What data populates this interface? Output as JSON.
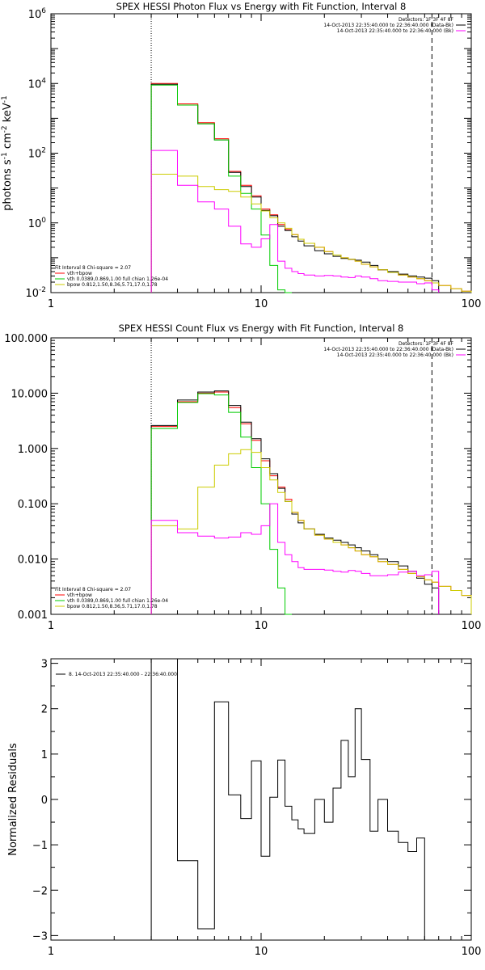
{
  "colors": {
    "data": "#000000",
    "total": "#ff0000",
    "vth": "#00cc00",
    "bpow": "#cccc00",
    "bk": "#ff00ff"
  },
  "chart_data": [
    {
      "type": "line",
      "title": "SPEX HESSI Photon Flux vs Energy with Fit Function, Interval 8",
      "ylabel_parts": {
        "a": "photons s",
        "ae": "-1",
        "b": " cm",
        "be": "-2",
        "c": " keV",
        "ce": "-1"
      },
      "xscale": "log",
      "yscale": "log",
      "xlim": [
        1,
        100
      ],
      "ylim": [
        0.01,
        1000000
      ],
      "xticks": [
        {
          "v": 1,
          "t": "1"
        },
        {
          "v": 10,
          "t": "10"
        },
        {
          "v": 100,
          "t": "100"
        }
      ],
      "yticks": [
        {
          "v": 0.01,
          "m": "10",
          "e": "-2"
        },
        {
          "v": 1,
          "m": "10",
          "e": "0"
        },
        {
          "v": 100,
          "m": "10",
          "e": "2"
        },
        {
          "v": 10000,
          "m": "10",
          "e": "4"
        },
        {
          "v": 1000000,
          "m": "10",
          "e": "6"
        }
      ],
      "vlines": [
        {
          "x": 3.0,
          "style": "dotted"
        },
        {
          "x": 65,
          "style": "dashed"
        }
      ],
      "legend_tr": [
        {
          "text": "Detectors: 1F 3F 4F 8F",
          "line": null
        },
        {
          "text": "14-Oct-2013 22:35:40.000 to 22:36:40.000 (Data-Bk)",
          "line": "data"
        },
        {
          "text": "14-Oct-2013 22:35:40.000 to 22:36:40.000 (Bk)",
          "line": "bk"
        }
      ],
      "legend_bl": [
        {
          "text": "Fit Interval  8    Chi-square = 2.07",
          "line": null
        },
        {
          "text": "vth+bpow",
          "line": "total"
        },
        {
          "text": "vth 0.0389,0.869,1.00  full chian 1.26e-04",
          "line": "vth"
        },
        {
          "text": "bpow 0.812,1.50,8.36,5.71,17.0,1.78",
          "line": "bpow"
        }
      ],
      "edges": [
        3.0,
        4.0,
        5.0,
        6.0,
        7.0,
        8.0,
        9.0,
        10.0,
        11.0,
        12.0,
        13.0,
        14.0,
        15.0,
        16.0,
        18.0,
        20.0,
        22.0,
        24.0,
        26.0,
        28.0,
        30.0,
        33.0,
        36.0,
        40.0,
        45.0,
        50.0,
        55.0,
        60.0,
        65.0,
        70.0,
        80.0,
        90.0,
        100.0
      ],
      "series": [
        {
          "name": "vth+bpow",
          "color_key": "total",
          "values": [
            10000,
            2600,
            750,
            260,
            30,
            12,
            6,
            2.5,
            1.7,
            0.9,
            0.65,
            0.46,
            0.34,
            0.26,
            0.2,
            0.15,
            0.12,
            0.1,
            0.09,
            0.08,
            0.065,
            0.055,
            0.045,
            0.038,
            0.032,
            0.028,
            0.025,
            0.022,
            0.019,
            0.016,
            0.013,
            0.011
          ]
        },
        {
          "name": "data",
          "color_key": "data",
          "values": [
            9500,
            2400,
            700,
            240,
            28,
            11,
            5.5,
            2.3,
            1.6,
            0.8,
            0.6,
            0.4,
            0.3,
            0.22,
            0.16,
            0.13,
            0.11,
            0.095,
            0.09,
            0.085,
            0.075,
            0.06,
            0.045,
            0.04,
            0.034,
            0.03,
            0.028,
            0.026,
            0.022,
            null,
            null,
            null
          ]
        },
        {
          "name": "vth",
          "color_key": "vth",
          "values": [
            9000,
            2400,
            700,
            240,
            22,
            7,
            2.5,
            0.45,
            0.06,
            0.012,
            0.003,
            null,
            null,
            null,
            null,
            null,
            null,
            null,
            null,
            null,
            null,
            null,
            null,
            null,
            null,
            null,
            null,
            null,
            null,
            null,
            null,
            null
          ]
        },
        {
          "name": "bpow",
          "color_key": "bpow",
          "values": [
            25,
            22,
            11,
            9,
            8,
            5.5,
            3.5,
            2.2,
            1.4,
            1.0,
            0.7,
            0.46,
            0.34,
            0.26,
            0.2,
            0.15,
            0.12,
            0.1,
            0.09,
            0.08,
            0.065,
            0.055,
            0.045,
            0.038,
            0.032,
            0.028,
            0.025,
            0.022,
            0.019,
            0.016,
            0.013,
            0.011
          ]
        },
        {
          "name": "bk",
          "color_key": "bk",
          "values": [
            120,
            12,
            4,
            2.5,
            0.8,
            0.25,
            0.2,
            0.35,
            0.9,
            0.08,
            0.05,
            0.04,
            0.035,
            0.032,
            0.03,
            0.031,
            0.03,
            0.028,
            0.027,
            0.03,
            0.028,
            0.025,
            0.022,
            0.021,
            0.02,
            0.02,
            0.018,
            0.019,
            0.012,
            null,
            null,
            null
          ]
        }
      ]
    },
    {
      "type": "line",
      "title": "SPEX HESSI Count Flux vs Energy with Fit Function, Interval 8",
      "ylabel_parts": null,
      "xscale": "log",
      "yscale": "log",
      "xlim": [
        1,
        100
      ],
      "ylim": [
        0.001,
        100
      ],
      "xticks": [
        {
          "v": 1,
          "t": "1"
        },
        {
          "v": 10,
          "t": "10"
        },
        {
          "v": 100,
          "t": "100"
        }
      ],
      "yticks": [
        {
          "v": 0.001,
          "t": "0.001"
        },
        {
          "v": 0.01,
          "t": "0.010"
        },
        {
          "v": 0.1,
          "t": "0.100"
        },
        {
          "v": 1,
          "t": "1.000"
        },
        {
          "v": 10,
          "t": "10.000"
        },
        {
          "v": 100,
          "t": "100.000"
        }
      ],
      "vlines": [
        {
          "x": 3.0,
          "style": "dotted"
        },
        {
          "x": 65,
          "style": "dashed"
        }
      ],
      "legend_tr": [
        {
          "text": "Detectors: 1F 3F 4F 8F",
          "line": null
        },
        {
          "text": "14-Oct-2013 22:35:40.000 to 22:36:40.000 (Data-Bk)",
          "line": "data"
        },
        {
          "text": "14-Oct-2013 22:35:40.000 to 22:36:40.000 (Bk)",
          "line": "bk"
        }
      ],
      "legend_bl": [
        {
          "text": "Fit Interval  8    Chi-square = 2.07",
          "line": null
        },
        {
          "text": "vth+bpow",
          "line": "total"
        },
        {
          "text": "vth 0.0389,0.869,1.00  full chian 1.26e-04",
          "line": "vth"
        },
        {
          "text": "bpow 0.812,1.50,8.36,5.71,17.0,1.78",
          "line": "bpow"
        }
      ],
      "edges": [
        3.0,
        4.0,
        5.0,
        6.0,
        7.0,
        8.0,
        9.0,
        10.0,
        11.0,
        12.0,
        13.0,
        14.0,
        15.0,
        16.0,
        18.0,
        20.0,
        22.0,
        24.0,
        26.0,
        28.0,
        30.0,
        33.0,
        36.0,
        40.0,
        45.0,
        50.0,
        55.0,
        60.0,
        65.0,
        70.0,
        80.0,
        90.0,
        100.0
      ],
      "series": [
        {
          "name": "vth+bpow",
          "color_key": "total",
          "values": [
            2.5,
            7,
            10,
            10.5,
            5.5,
            2.8,
            1.4,
            0.6,
            0.32,
            0.2,
            0.12,
            0.07,
            0.05,
            0.035,
            0.027,
            0.023,
            0.02,
            0.018,
            0.016,
            0.014,
            0.012,
            0.011,
            0.009,
            0.008,
            0.0065,
            0.0055,
            0.0048,
            0.0042,
            0.0038,
            0.0032,
            0.0027,
            0.0022
          ]
        },
        {
          "name": "data",
          "color_key": "data",
          "values": [
            2.6,
            7.5,
            10.5,
            11,
            6,
            3,
            1.5,
            0.65,
            0.35,
            0.19,
            0.11,
            0.065,
            0.045,
            0.035,
            0.028,
            0.024,
            0.022,
            0.02,
            0.018,
            0.016,
            0.014,
            0.012,
            0.01,
            0.009,
            0.0075,
            0.006,
            0.0045,
            0.0035,
            0.003,
            null,
            null,
            null
          ]
        },
        {
          "name": "vth",
          "color_key": "vth",
          "values": [
            2.3,
            6.8,
            9.8,
            9.3,
            4.5,
            1.6,
            0.45,
            0.1,
            0.015,
            0.003,
            0.0008,
            null,
            null,
            null,
            null,
            null,
            null,
            null,
            null,
            null,
            null,
            null,
            null,
            null,
            null,
            null,
            null,
            null,
            null,
            null,
            null,
            null
          ]
        },
        {
          "name": "bpow",
          "color_key": "bpow",
          "values": [
            0.04,
            0.035,
            0.2,
            0.5,
            0.8,
            0.95,
            0.85,
            0.45,
            0.27,
            0.16,
            0.11,
            0.07,
            0.05,
            0.035,
            0.027,
            0.023,
            0.02,
            0.018,
            0.016,
            0.014,
            0.012,
            0.011,
            0.009,
            0.008,
            0.0065,
            0.0055,
            0.0048,
            0.0042,
            0.0038,
            0.0032,
            0.0027,
            0.0022
          ]
        },
        {
          "name": "bk",
          "color_key": "bk",
          "values": [
            0.05,
            0.03,
            0.026,
            0.024,
            0.025,
            0.03,
            0.028,
            0.04,
            0.1,
            0.02,
            0.012,
            0.009,
            0.007,
            0.0065,
            0.0065,
            0.0063,
            0.006,
            0.0058,
            0.0062,
            0.006,
            0.0055,
            0.005,
            0.005,
            0.0052,
            0.0058,
            0.006,
            0.005,
            0.0052,
            0.006,
            null,
            null,
            null
          ]
        }
      ]
    },
    {
      "type": "line",
      "title": "",
      "ylabel": "Normalized Residuals",
      "xscale": "log",
      "yscale": "linear",
      "xlim": [
        1,
        100
      ],
      "ylim": [
        -3.1,
        3.1
      ],
      "xticks": [
        {
          "v": 1,
          "t": "1"
        },
        {
          "v": 10,
          "t": "10"
        },
        {
          "v": 100,
          "t": "100"
        }
      ],
      "yticks": [
        {
          "v": 3,
          "t": "3"
        },
        {
          "v": 2,
          "t": "2"
        },
        {
          "v": 1,
          "t": "1"
        },
        {
          "v": 0,
          "t": "0"
        },
        {
          "v": -1,
          "t": "−1"
        },
        {
          "v": -2,
          "t": "−2"
        },
        {
          "v": -3,
          "t": "−3"
        }
      ],
      "vlines": [],
      "legend_tl": "8. 14-Oct-2013 22:35:40.000 - 22:36:40.000",
      "edges": [
        3.0,
        4.0,
        5.0,
        6.0,
        7.0,
        8.0,
        9.0,
        10.0,
        11.0,
        12.0,
        13.0,
        14.0,
        15.0,
        16.0,
        18.0,
        20.0,
        22.0,
        24.0,
        26.0,
        28.0,
        30.0,
        33.0,
        36.0,
        40.0,
        45.0,
        50.0,
        55.0,
        60.0,
        65.0
      ],
      "series": [
        {
          "name": "residuals",
          "color_key": "data",
          "values": [
            3.1,
            -1.35,
            -2.85,
            2.15,
            0.1,
            -0.42,
            0.85,
            -1.25,
            0.05,
            0.87,
            -0.15,
            -0.45,
            -0.65,
            -0.75,
            0.0,
            -0.5,
            0.25,
            1.3,
            0.5,
            2.0,
            0.88,
            -0.7,
            0.0,
            -0.7,
            -0.95,
            -1.15,
            -0.85,
            -3.1
          ]
        }
      ]
    }
  ]
}
